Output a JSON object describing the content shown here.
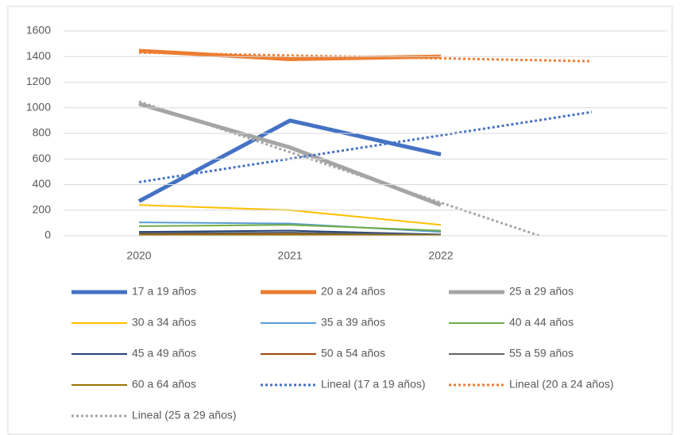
{
  "chart_data": {
    "type": "line",
    "categories": [
      "2020",
      "2021",
      "2022",
      null
    ],
    "ylim": [
      0,
      1600
    ],
    "yticks": [
      0,
      200,
      400,
      600,
      800,
      1000,
      1200,
      1400,
      1600
    ],
    "grid": true,
    "legend": "bottom",
    "series": [
      {
        "name": "17 a 19 años",
        "color": "#4472c4",
        "width": 5,
        "values": [
          270,
          900,
          635,
          null
        ]
      },
      {
        "name": "20 a 24 años",
        "color": "#ed7d31",
        "width": 5,
        "values": [
          1445,
          1380,
          1400,
          null
        ]
      },
      {
        "name": "25 a 29 años",
        "color": "#a5a5a5",
        "width": 5,
        "values": [
          1030,
          690,
          240,
          null
        ]
      },
      {
        "name": "30 a 34 años",
        "color": "#ffc000",
        "width": 2,
        "values": [
          240,
          200,
          85,
          null
        ]
      },
      {
        "name": "35 a 39 años",
        "color": "#5b9bd5",
        "width": 2,
        "values": [
          105,
          95,
          30,
          null
        ]
      },
      {
        "name": "40 a 44 años",
        "color": "#70ad47",
        "width": 2,
        "values": [
          75,
          85,
          40,
          null
        ]
      },
      {
        "name": "45 a 49 años",
        "color": "#264478",
        "width": 2,
        "values": [
          30,
          40,
          10,
          null
        ]
      },
      {
        "name": "50 a 54 años",
        "color": "#9e480e",
        "width": 2,
        "values": [
          15,
          20,
          5,
          null
        ]
      },
      {
        "name": "55 a 59 años",
        "color": "#636363",
        "width": 2,
        "values": [
          20,
          25,
          8,
          null
        ]
      },
      {
        "name": "60 a 64 años",
        "color": "#997300",
        "width": 2,
        "values": [
          5,
          8,
          3,
          null
        ]
      },
      {
        "name": "Lineal (17 a 19 años)",
        "color": "#4472c4",
        "width": 3,
        "style": "dotted",
        "values": [
          419.2,
          601.7,
          784.2,
          966.7
        ]
      },
      {
        "name": "Lineal (20 a 24 años)",
        "color": "#ed7d31",
        "width": 3,
        "style": "dotted",
        "values": [
          1430.8,
          1408.3,
          1385.8,
          1363.3
        ]
      },
      {
        "name": "Lineal (25 a 29 años)",
        "color": "#a5a5a5",
        "width": 3,
        "style": "dotted",
        "values": [
          1048.3,
          653.3,
          258.3,
          -136.7
        ]
      }
    ]
  }
}
